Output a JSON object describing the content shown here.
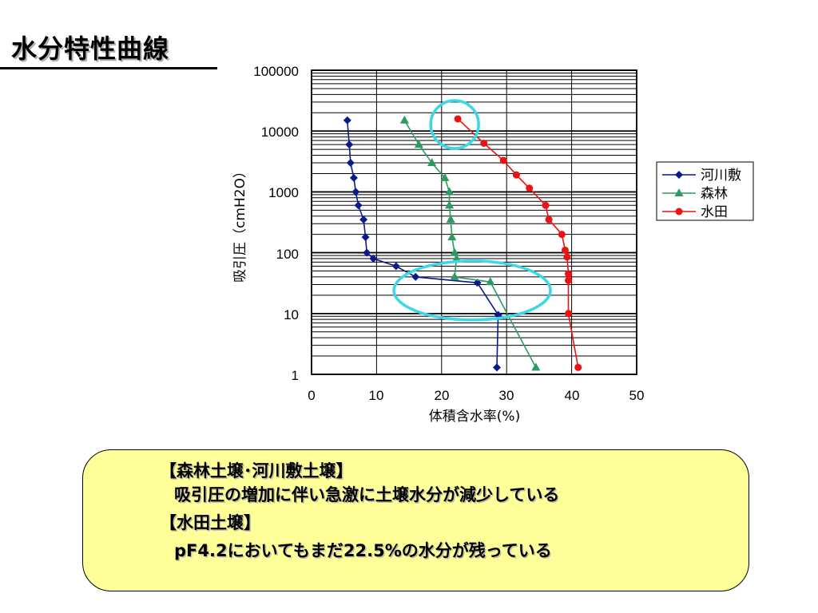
{
  "slide": {
    "title": "水分特性曲線"
  },
  "notes": {
    "line1": "【森林土壌･河川敷土壌】",
    "line2": "吸引圧の増加に伴い急激に土壌水分が減少している",
    "line3": "【水田土壌】",
    "line4": "pF4.2においてもまだ22.5%の水分が残っている"
  },
  "colors": {
    "kasenjiki": "#0a1a8a",
    "shinrin": "#2e9a62",
    "suiden": "#ee1111",
    "highlight": "#3ad8e8",
    "note_bg": "#ffff99"
  },
  "chart_data": {
    "type": "scatter",
    "title": "",
    "xlabel": "体積含水率(%)",
    "ylabel": "吸引圧（cmH2O）",
    "xlim": [
      0,
      50
    ],
    "ylim": [
      1,
      100000
    ],
    "yscale": "log",
    "x_ticks": [
      "0",
      "10",
      "20",
      "30",
      "40",
      "50"
    ],
    "y_ticks": [
      "1",
      "10",
      "100",
      "1000",
      "10000",
      "100000"
    ],
    "grid": "horizontal minor and major, vertical major",
    "legend_position": "right",
    "series": [
      {
        "name": "河川敷",
        "marker": "diamond",
        "points": [
          [
            5.5,
            15000
          ],
          [
            5.8,
            6000
          ],
          [
            6.0,
            3000
          ],
          [
            6.5,
            1700
          ],
          [
            6.8,
            1000
          ],
          [
            7.2,
            600
          ],
          [
            8.0,
            350
          ],
          [
            8.3,
            180
          ],
          [
            8.5,
            100
          ],
          [
            9.5,
            80
          ],
          [
            13.0,
            60
          ],
          [
            16.0,
            40
          ],
          [
            25.5,
            32
          ],
          [
            28.7,
            9.5
          ],
          [
            28.5,
            1.3
          ]
        ]
      },
      {
        "name": "森林",
        "marker": "triangle",
        "points": [
          [
            14.3,
            15000
          ],
          [
            16.5,
            6000
          ],
          [
            18.5,
            3000
          ],
          [
            20.5,
            1700
          ],
          [
            21.2,
            1000
          ],
          [
            21.2,
            600
          ],
          [
            21.4,
            350
          ],
          [
            21.6,
            180
          ],
          [
            22.0,
            100
          ],
          [
            22.3,
            80
          ],
          [
            22.0,
            40
          ],
          [
            27.5,
            33
          ],
          [
            34.5,
            1.3
          ]
        ]
      },
      {
        "name": "水田",
        "marker": "circle",
        "points": [
          [
            22.5,
            15850
          ],
          [
            26.5,
            6300
          ],
          [
            29.5,
            3300
          ],
          [
            31.5,
            1900
          ],
          [
            33.5,
            1150
          ],
          [
            36.0,
            600
          ],
          [
            36.5,
            350
          ],
          [
            38.5,
            200
          ],
          [
            39.0,
            110
          ],
          [
            39.3,
            85
          ],
          [
            39.5,
            45
          ],
          [
            39.5,
            35
          ],
          [
            39.5,
            10
          ],
          [
            41.0,
            1.3
          ]
        ]
      }
    ],
    "annotations": [
      {
        "shape": "circle",
        "around": "水田 at 22.5%, 15850 cmH2O"
      },
      {
        "shape": "ellipse",
        "around": "河川敷 and 森林 drop between 10 and 100 cmH2O"
      }
    ]
  }
}
